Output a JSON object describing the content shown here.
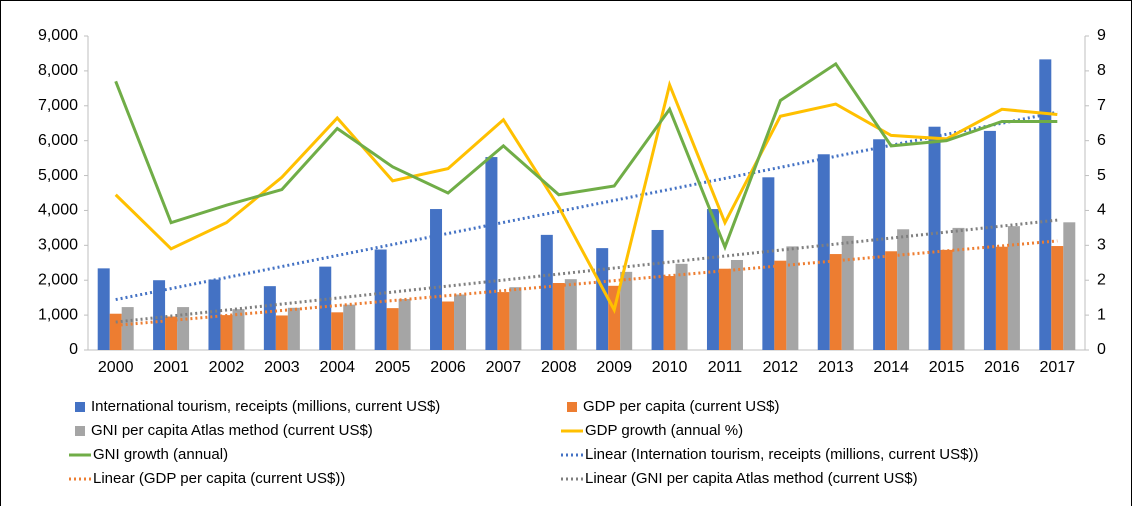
{
  "chart_data": {
    "type": "bar_line",
    "categories": [
      "2000",
      "2001",
      "2002",
      "2003",
      "2004",
      "2005",
      "2006",
      "2007",
      "2008",
      "2009",
      "2010",
      "2011",
      "2012",
      "2013",
      "2014",
      "2015",
      "2016",
      "2017"
    ],
    "series": [
      {
        "name": "International tourism, receipts (millions, current US$)",
        "type": "bar",
        "color": "#4472c4",
        "values": [
          2340,
          2000,
          2020,
          1830,
          2390,
          2880,
          4040,
          5530,
          3300,
          2920,
          3440,
          4040,
          4950,
          5610,
          6040,
          6400,
          6280,
          8330
        ],
        "trendline": {
          "name": "Linear (Internation tourism, receipts (millions, current US$))",
          "color": "#4472c4"
        }
      },
      {
        "name": "GDP per capita (current US$)",
        "type": "bar",
        "color": "#ed7d31",
        "values": [
          1040,
          960,
          1000,
          990,
          1080,
          1200,
          1390,
          1660,
          1920,
          1840,
          2120,
          2330,
          2560,
          2750,
          2830,
          2870,
          2960,
          2980
        ],
        "trendline": {
          "name": "Linear (GDP per capita (current US$))",
          "color": "#ed7d31"
        }
      },
      {
        "name": "GNI per capita Atlas method (current US$)",
        "type": "bar",
        "color": "#a5a5a5",
        "values": [
          1230,
          1230,
          1170,
          1210,
          1300,
          1460,
          1590,
          1800,
          2030,
          2240,
          2470,
          2580,
          2970,
          3270,
          3460,
          3500,
          3550,
          3660
        ],
        "trendline": {
          "name": "Linear (GNI per capita Atlas method (current US$)",
          "color": "#7f7f7f"
        }
      },
      {
        "name": "GDP growth (annual %)",
        "type": "line",
        "axis": "y2",
        "color": "#ffc000",
        "values": [
          4.45,
          2.9,
          3.65,
          4.95,
          6.65,
          4.85,
          5.2,
          6.6,
          4.1,
          1.15,
          7.6,
          3.65,
          6.7,
          7.05,
          6.15,
          6.05,
          6.9,
          6.75
        ]
      },
      {
        "name": "GNI growth (annual)",
        "type": "line",
        "axis": "y2",
        "color": "#70ad47",
        "values": [
          7.7,
          3.65,
          4.15,
          4.6,
          6.35,
          5.25,
          4.5,
          5.85,
          4.45,
          4.7,
          6.9,
          2.95,
          7.15,
          8.2,
          5.85,
          6.0,
          6.55,
          6.55
        ]
      }
    ],
    "ylim": [
      0,
      9000
    ],
    "yticks": [
      0,
      {
        "value": 1000,
        "label": "1,000"
      },
      {
        "value": 2000,
        "label": "2,000"
      },
      {
        "value": 3000,
        "label": "3,000"
      },
      {
        "value": 4000,
        "label": "4,000"
      },
      {
        "value": 5000,
        "label": "5,000"
      },
      {
        "value": 6000,
        "label": "6,000"
      },
      {
        "value": 7000,
        "label": "7,000"
      },
      {
        "value": 8000,
        "label": "8,000"
      },
      {
        "value": 9000,
        "label": "9,000"
      }
    ],
    "y2lim": [
      0,
      9
    ],
    "y2ticks": [
      0,
      1,
      2,
      3,
      4,
      5,
      6,
      7,
      8,
      9
    ],
    "legend": "bottom"
  }
}
